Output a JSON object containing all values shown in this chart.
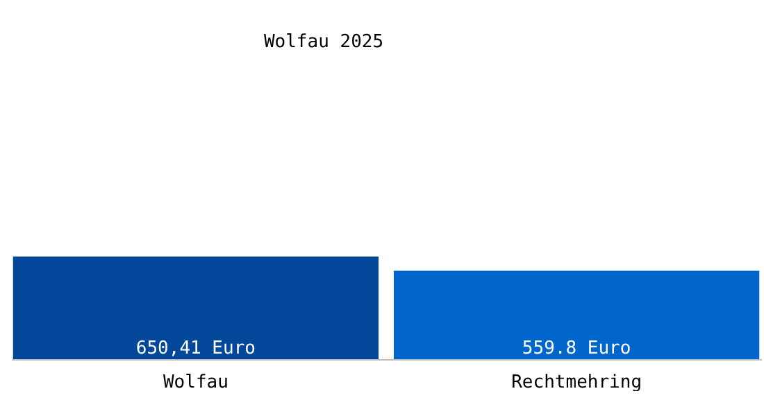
{
  "chart_data": {
    "type": "bar",
    "title": "Wolfau 2025",
    "categories": [
      "Wolfau",
      "Rechtmehring"
    ],
    "values": [
      650.41,
      559.8
    ],
    "colors": [
      "#03479a",
      "#0066cc"
    ],
    "value_labels": [
      "650,41 Euro",
      "559.8 Euro"
    ]
  }
}
